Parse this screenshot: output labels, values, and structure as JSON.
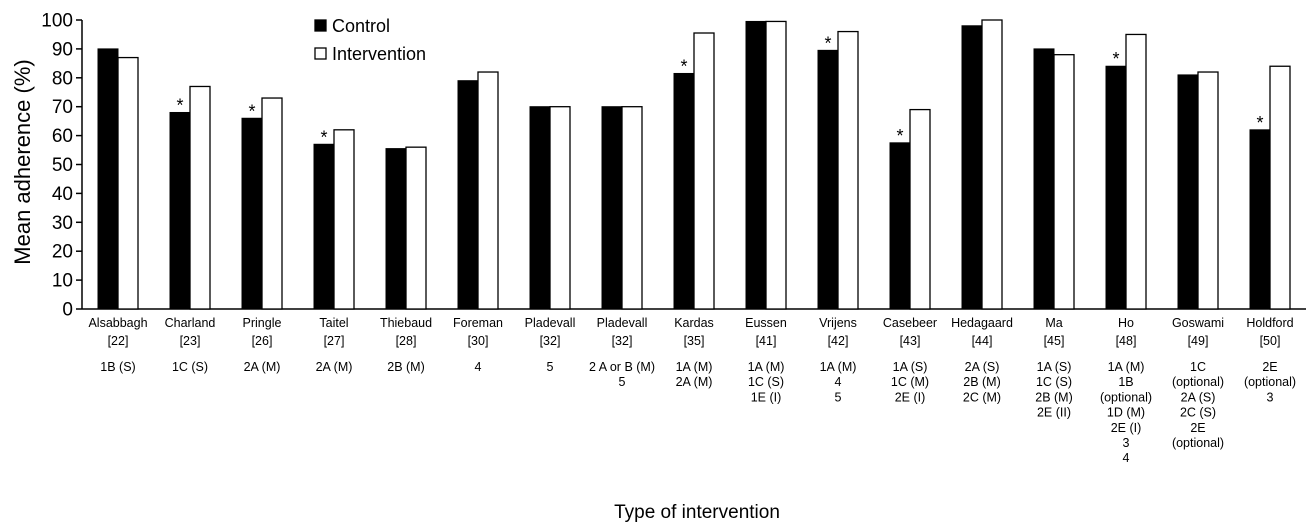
{
  "chart_data": {
    "type": "bar",
    "ylabel": "Mean adherence (%)",
    "xlabel": "Type of intervention",
    "ylim": [
      0,
      100
    ],
    "yticks": [
      0,
      10,
      20,
      30,
      40,
      50,
      60,
      70,
      80,
      90,
      100
    ],
    "legend_position": "top-left",
    "categories": [
      {
        "name": "Alsabbagh",
        "ref": "[22]",
        "codes": [
          "1B (S)"
        ]
      },
      {
        "name": "Charland",
        "ref": "[23]",
        "codes": [
          "1C (S)"
        ]
      },
      {
        "name": "Pringle",
        "ref": "[26]",
        "codes": [
          "2A (M)"
        ]
      },
      {
        "name": "Taitel",
        "ref": "[27]",
        "codes": [
          "2A (M)"
        ]
      },
      {
        "name": "Thiebaud",
        "ref": "[28]",
        "codes": [
          "2B (M)"
        ]
      },
      {
        "name": "Foreman",
        "ref": "[30]",
        "codes": [
          "4"
        ]
      },
      {
        "name": "Pladevall",
        "ref": "[32]",
        "codes": [
          "5"
        ]
      },
      {
        "name": "Pladevall",
        "ref": "[32]",
        "codes": [
          "2 A or B (M)",
          "5"
        ]
      },
      {
        "name": "Kardas",
        "ref": "[35]",
        "codes": [
          "1A (M)",
          "2A (M)"
        ]
      },
      {
        "name": "Eussen",
        "ref": "[41]",
        "codes": [
          "1A (M)",
          "1C (S)",
          "1E (I)"
        ]
      },
      {
        "name": "Vrijens",
        "ref": "[42]",
        "codes": [
          "1A (M)",
          "4",
          "5"
        ]
      },
      {
        "name": "Casebeer",
        "ref": "[43]",
        "codes": [
          "1A (S)",
          "1C (M)",
          "2E (I)"
        ]
      },
      {
        "name": "Hedagaard",
        "ref": "[44]",
        "codes": [
          "2A (S)",
          "2B (M)",
          "2C (M)"
        ]
      },
      {
        "name": "Ma",
        "ref": "[45]",
        "codes": [
          "1A (S)",
          "1C (S)",
          "2B (M)",
          "2E (II)"
        ]
      },
      {
        "name": "Ho",
        "ref": "[48]",
        "codes": [
          "1A (M)",
          "1B",
          "(optional)",
          "1D (M)",
          "2E (I)",
          "3",
          "4"
        ]
      },
      {
        "name": "Goswami",
        "ref": "[49]",
        "codes": [
          "1C",
          "(optional)",
          "2A (S)",
          "2C (S)",
          "2E",
          "(optional)"
        ]
      },
      {
        "name": "Holdford",
        "ref": "[50]",
        "codes": [
          "2E",
          "(optional)",
          "3"
        ]
      }
    ],
    "series": [
      {
        "name": "Control",
        "color": "#000000",
        "values": [
          90,
          68,
          66,
          57,
          55.5,
          79,
          70,
          70,
          81.5,
          99.5,
          89.5,
          57.5,
          98,
          90,
          84,
          81,
          62
        ]
      },
      {
        "name": "Intervention",
        "color": "#ffffff",
        "values": [
          87,
          77,
          73,
          62,
          56,
          82,
          70,
          70,
          95.5,
          99.5,
          96,
          69,
          100,
          88,
          95,
          82,
          84
        ]
      }
    ],
    "significant": [
      false,
      true,
      true,
      true,
      false,
      false,
      false,
      false,
      true,
      false,
      true,
      true,
      false,
      false,
      true,
      false,
      true
    ],
    "significance_marker": "*"
  }
}
